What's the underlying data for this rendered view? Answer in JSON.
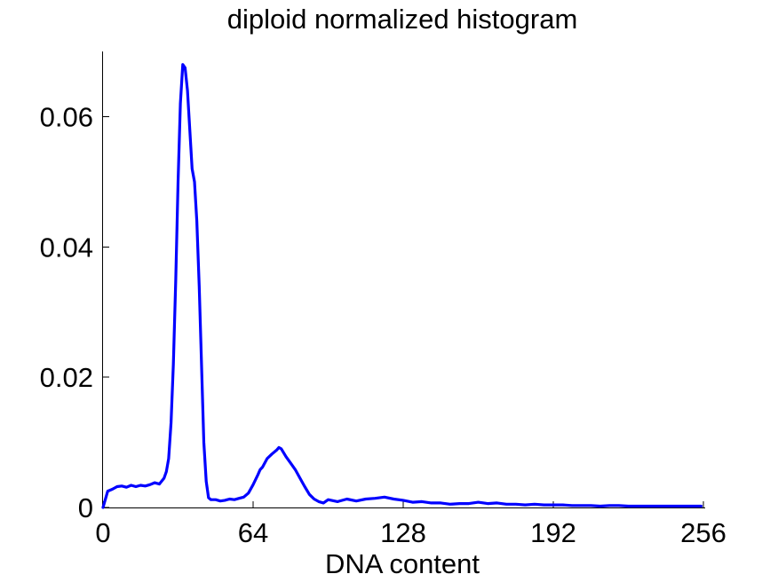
{
  "chart_data": {
    "type": "line",
    "title": "diploid normalized histogram",
    "xlabel": "DNA content",
    "ylabel": "",
    "xlim": [
      0,
      256
    ],
    "ylim": [
      0,
      0.07
    ],
    "xticks": [
      0,
      64,
      128,
      192,
      256
    ],
    "xtick_labels": [
      "0",
      "64",
      "128",
      "192",
      "256"
    ],
    "yticks": [
      0,
      0.02,
      0.04,
      0.06
    ],
    "ytick_labels": [
      "0",
      "0.02",
      "0.04",
      "0.06"
    ],
    "grid": false,
    "legend": "none",
    "series": [
      {
        "color": "#0000ff",
        "x": [
          0,
          2,
          4,
          6,
          8,
          10,
          12,
          14,
          16,
          18,
          20,
          22,
          24,
          26,
          27,
          28,
          29,
          30,
          31,
          32,
          33,
          34,
          35,
          36,
          37,
          38,
          39,
          40,
          41,
          42,
          43,
          44,
          45,
          46,
          48,
          50,
          52,
          54,
          56,
          58,
          60,
          62,
          64,
          66,
          67,
          68,
          70,
          72,
          74,
          75,
          76,
          78,
          80,
          82,
          84,
          86,
          88,
          90,
          92,
          94,
          96,
          100,
          104,
          108,
          112,
          116,
          120,
          124,
          128,
          132,
          136,
          140,
          144,
          148,
          152,
          156,
          160,
          164,
          168,
          172,
          176,
          180,
          184,
          188,
          192,
          196,
          200,
          204,
          208,
          212,
          216,
          220,
          224,
          228,
          232,
          236,
          240,
          244,
          248,
          252,
          255
        ],
        "y": [
          0.0,
          0.0025,
          0.0028,
          0.0032,
          0.0033,
          0.0031,
          0.0034,
          0.0032,
          0.0034,
          0.0033,
          0.0035,
          0.0038,
          0.0036,
          0.0045,
          0.0055,
          0.0075,
          0.013,
          0.022,
          0.035,
          0.05,
          0.062,
          0.068,
          0.0675,
          0.064,
          0.058,
          0.052,
          0.05,
          0.044,
          0.034,
          0.022,
          0.01,
          0.004,
          0.0015,
          0.0012,
          0.0012,
          0.001,
          0.0011,
          0.0013,
          0.0012,
          0.0014,
          0.0016,
          0.0022,
          0.0035,
          0.005,
          0.0058,
          0.0062,
          0.0075,
          0.0082,
          0.0088,
          0.0092,
          0.009,
          0.0078,
          0.0068,
          0.0058,
          0.0045,
          0.0032,
          0.002,
          0.0013,
          0.0009,
          0.0007,
          0.0012,
          0.0009,
          0.0013,
          0.001,
          0.0013,
          0.0014,
          0.0016,
          0.0013,
          0.0011,
          0.0008,
          0.0009,
          0.0007,
          0.0007,
          0.0005,
          0.0006,
          0.0006,
          0.0008,
          0.0006,
          0.0007,
          0.0005,
          0.0005,
          0.0004,
          0.0005,
          0.0004,
          0.0004,
          0.0004,
          0.0003,
          0.0003,
          0.0003,
          0.0002,
          0.0003,
          0.0003,
          0.0002,
          0.0002,
          0.0002,
          0.0002,
          0.0002,
          0.0002,
          0.0002,
          0.0002,
          0.0002
        ]
      }
    ]
  }
}
